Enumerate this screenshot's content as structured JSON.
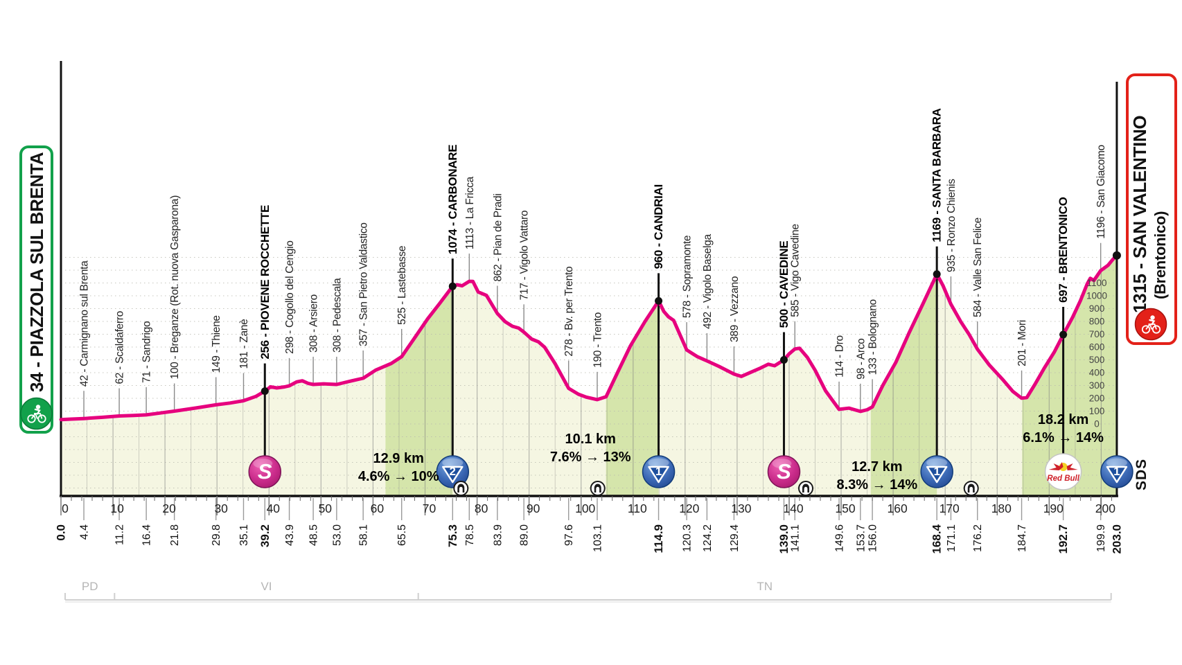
{
  "stage": {
    "start": {
      "label": "34 - PIAZZOLA SUL BRENTA"
    },
    "finish": {
      "label": "1315 - SAN VALENTINO",
      "sub": "(Brentonico)"
    },
    "watermark": "SDS"
  },
  "colors": {
    "profile_pink": "#e6007e",
    "fill_cream": "#f5f6e2",
    "fill_climb": "#d5e5ab",
    "start_green": "#12a14b",
    "finish_red": "#e32119",
    "cat_blue": "#2a56a5",
    "cat_blue_dark": "#1d4f9e",
    "sprint_magenta": "#c42387",
    "redbull_red": "#cf2029",
    "redbull_yellow": "#f5d120",
    "grid_gray": "#9a9a9a",
    "region_gray": "#b5b5b5"
  },
  "regions": [
    {
      "label": "PD",
      "from_km": 0.8,
      "to_km": 10.3
    },
    {
      "label": "VI",
      "from_km": 10.3,
      "to_km": 68.7
    },
    {
      "label": "TN",
      "from_km": 68.7,
      "to_km": 201.9
    }
  ],
  "chart_data": {
    "type": "area",
    "x_unit": "km",
    "y_unit": "m",
    "x_range": [
      0,
      203
    ],
    "x_ticks": [
      0,
      10,
      20,
      30,
      40,
      50,
      60,
      70,
      80,
      90,
      100,
      110,
      120,
      130,
      140,
      150,
      160,
      170,
      180,
      190,
      200
    ],
    "y_tick_labels": [
      0,
      100,
      200,
      300,
      400,
      500,
      600,
      700,
      800,
      900,
      1000,
      1100
    ],
    "start_point": {
      "km_text": "0.0",
      "elev": 34,
      "bold": true
    },
    "finish_point": {
      "km_text": "203.0",
      "elev": 1315,
      "bold": true,
      "icon": "cat1"
    },
    "waypoints": [
      {
        "km": 4.4,
        "km_text": "4.4",
        "elev": 42,
        "label": "42 - Carmignano sul Brenta"
      },
      {
        "km": 11.2,
        "km_text": "11.2",
        "elev": 62,
        "label": "62 - Scaldaferro"
      },
      {
        "km": 16.4,
        "km_text": "16.4",
        "elev": 71,
        "label": "71 - Sandrigo"
      },
      {
        "km": 21.8,
        "km_text": "21.8",
        "elev": 100,
        "label": "100 - Breganze (Rot. nuova Gasparona)"
      },
      {
        "km": 29.8,
        "km_text": "29.8",
        "elev": 149,
        "label": "149 - Thiene"
      },
      {
        "km": 35.1,
        "km_text": "35.1",
        "elev": 181,
        "label": "181 - Zanè"
      },
      {
        "km": 39.2,
        "km_text": "39.2",
        "elev": 256,
        "label": "256 - PIOVENE ROCCHETTE",
        "bold": true,
        "icon": "sprint"
      },
      {
        "km": 43.9,
        "km_text": "43.9",
        "elev": 298,
        "label": "298 - Cogollo del Cengio"
      },
      {
        "km": 48.5,
        "km_text": "48.5",
        "elev": 308,
        "label": "308 - Arsiero"
      },
      {
        "km": 53.0,
        "km_text": "53.0",
        "elev": 308,
        "label": "308 - Pedescala"
      },
      {
        "km": 58.1,
        "km_text": "58.1",
        "elev": 357,
        "label": "357 - San Pietro Valdastico"
      },
      {
        "km": 65.5,
        "km_text": "65.5",
        "elev": 525,
        "label": "525 - Lastebasse"
      },
      {
        "km": 75.3,
        "km_text": "75.3",
        "elev": 1074,
        "label": "1074 - CARBONARE",
        "bold": true,
        "icon": "cat2"
      },
      {
        "km": 78.5,
        "km_text": "78.5",
        "elev": 1113,
        "label": "1113 - La Fricca"
      },
      {
        "km": 83.9,
        "km_text": "83.9",
        "elev": 862,
        "label": "862 - Pian de Pradi"
      },
      {
        "km": 89.0,
        "km_text": "89.0",
        "elev": 717,
        "label": "717 - Vigolo Vattaro"
      },
      {
        "km": 97.6,
        "km_text": "97.6",
        "elev": 278,
        "label": "278 - Bv. per Trento"
      },
      {
        "km": 103.1,
        "km_text": "103.1",
        "elev": 190,
        "label": "190 - Trento"
      },
      {
        "km": 114.9,
        "km_text": "114.9",
        "elev": 960,
        "label": "960 - CANDRIAI",
        "bold": true,
        "icon": "cat1"
      },
      {
        "km": 120.3,
        "km_text": "120.3",
        "elev": 578,
        "label": "578 - Sopramonte"
      },
      {
        "km": 124.2,
        "km_text": "124.2",
        "elev": 492,
        "label": "492 - Vigolo Baselga"
      },
      {
        "km": 129.4,
        "km_text": "129.4",
        "elev": 389,
        "label": "389 - Vezzano"
      },
      {
        "km": 139.0,
        "km_text": "139.0",
        "elev": 500,
        "label": "500 - CAVEDINE",
        "bold": true,
        "icon": "sprint"
      },
      {
        "km": 141.1,
        "km_text": "141.1",
        "elev": 585,
        "label": "585 - Vigo Cavedine"
      },
      {
        "km": 149.6,
        "km_text": "149.6",
        "elev": 114,
        "label": "114 - Dro"
      },
      {
        "km": 153.7,
        "km_text": "153.7",
        "elev": 98,
        "label": "98 - Arco"
      },
      {
        "km": 156.0,
        "km_text": "156.0",
        "elev": 133,
        "label": "133 - Bolognano"
      },
      {
        "km": 168.4,
        "km_text": "168.4",
        "elev": 1169,
        "label": "1169 - SANTA BARBARA",
        "bold": true,
        "icon": "cat1"
      },
      {
        "km": 171.1,
        "km_text": "171.1",
        "elev": 935,
        "label": "935 - Ronzo Chienis"
      },
      {
        "km": 176.2,
        "km_text": "176.2",
        "elev": 584,
        "label": "584 - Valle San Felice"
      },
      {
        "km": 184.7,
        "km_text": "184.7",
        "elev": 201,
        "label": "201 - Mori"
      },
      {
        "km": 192.7,
        "km_text": "192.7",
        "elev": 697,
        "label": "697 - BRENTONICO",
        "bold": true,
        "icon": "redbull"
      },
      {
        "km": 199.9,
        "km_text": "199.9",
        "elev": 1196,
        "label": "1196 - San Giacomo"
      }
    ],
    "climb_annotations": [
      {
        "length": "12.9 km",
        "gradient": "4.6% → 10%",
        "at_km": 64.9
      },
      {
        "length": "10.1 km",
        "gradient": "7.6% → 13%",
        "at_km": 101.8
      },
      {
        "length": "12.7 km",
        "gradient": "8.3% → 14%",
        "at_km": 156.9
      },
      {
        "length": "18.2 km",
        "gradient": "6.1% → 14%",
        "at_km": 192.7
      }
    ],
    "climb_segments": [
      [
        62.4,
        75.3
      ],
      [
        104.8,
        114.9
      ],
      [
        155.7,
        168.4
      ],
      [
        184.8,
        203.0
      ]
    ],
    "tunnels_km": [
      76.9,
      103.2,
      143.2,
      175.0
    ],
    "profile": [
      [
        0,
        34
      ],
      [
        2,
        38
      ],
      [
        4.4,
        42
      ],
      [
        8,
        52
      ],
      [
        11.2,
        62
      ],
      [
        14,
        66
      ],
      [
        16.4,
        71
      ],
      [
        19,
        85
      ],
      [
        21.8,
        100
      ],
      [
        26,
        125
      ],
      [
        29.8,
        149
      ],
      [
        32.5,
        163
      ],
      [
        35.1,
        181
      ],
      [
        37.5,
        215
      ],
      [
        39.2,
        256
      ],
      [
        40.3,
        290
      ],
      [
        41.5,
        281
      ],
      [
        43,
        289
      ],
      [
        43.9,
        298
      ],
      [
        45.3,
        328
      ],
      [
        46.4,
        337
      ],
      [
        47.5,
        317
      ],
      [
        48.5,
        308
      ],
      [
        50.5,
        313
      ],
      [
        53,
        308
      ],
      [
        55.2,
        330
      ],
      [
        58.1,
        357
      ],
      [
        60.5,
        420
      ],
      [
        63.5,
        472
      ],
      [
        65.5,
        525
      ],
      [
        68,
        672
      ],
      [
        70.5,
        820
      ],
      [
        72.8,
        940
      ],
      [
        75.3,
        1074
      ],
      [
        76.2,
        1086
      ],
      [
        77.1,
        1078
      ],
      [
        78.5,
        1113
      ],
      [
        79.2,
        1112
      ],
      [
        80.2,
        1030
      ],
      [
        81.8,
        1003
      ],
      [
        83.9,
        862
      ],
      [
        85.4,
        798
      ],
      [
        86.8,
        762
      ],
      [
        88,
        748
      ],
      [
        89,
        717
      ],
      [
        90.5,
        662
      ],
      [
        91.8,
        641
      ],
      [
        93,
        598
      ],
      [
        95,
        470
      ],
      [
        97.6,
        278
      ],
      [
        99.5,
        232
      ],
      [
        101,
        209
      ],
      [
        103.1,
        190
      ],
      [
        104.8,
        212
      ],
      [
        107,
        400
      ],
      [
        109.5,
        610
      ],
      [
        112.3,
        800
      ],
      [
        114.9,
        960
      ],
      [
        115.9,
        878
      ],
      [
        116.8,
        836
      ],
      [
        117.8,
        808
      ],
      [
        120.3,
        578
      ],
      [
        121.4,
        549
      ],
      [
        122.4,
        524
      ],
      [
        124.2,
        492
      ],
      [
        126.5,
        449
      ],
      [
        129.4,
        389
      ],
      [
        130.8,
        371
      ],
      [
        132.5,
        401
      ],
      [
        134.5,
        436
      ],
      [
        136,
        466
      ],
      [
        137.2,
        454
      ],
      [
        139,
        500
      ],
      [
        140,
        547
      ],
      [
        141.1,
        585
      ],
      [
        142,
        591
      ],
      [
        143.5,
        519
      ],
      [
        145,
        419
      ],
      [
        147,
        259
      ],
      [
        149.6,
        114
      ],
      [
        151.5,
        123
      ],
      [
        153.7,
        98
      ],
      [
        155,
        111
      ],
      [
        156,
        133
      ],
      [
        158,
        300
      ],
      [
        160.5,
        480
      ],
      [
        163,
        705
      ],
      [
        165.7,
        935
      ],
      [
        168.4,
        1169
      ],
      [
        169.6,
        1078
      ],
      [
        171.1,
        935
      ],
      [
        173,
        798
      ],
      [
        174.6,
        699
      ],
      [
        176.2,
        584
      ],
      [
        178.5,
        459
      ],
      [
        181,
        349
      ],
      [
        183,
        254
      ],
      [
        184.7,
        201
      ],
      [
        185.7,
        206
      ],
      [
        187.2,
        305
      ],
      [
        189,
        432
      ],
      [
        191,
        562
      ],
      [
        192.7,
        697
      ],
      [
        194.5,
        832
      ],
      [
        196,
        962
      ],
      [
        197.3,
        1092
      ],
      [
        197.9,
        1136
      ],
      [
        198.6,
        1120
      ],
      [
        199.9,
        1196
      ],
      [
        201.3,
        1238
      ],
      [
        202.2,
        1282
      ],
      [
        203,
        1315
      ]
    ]
  }
}
